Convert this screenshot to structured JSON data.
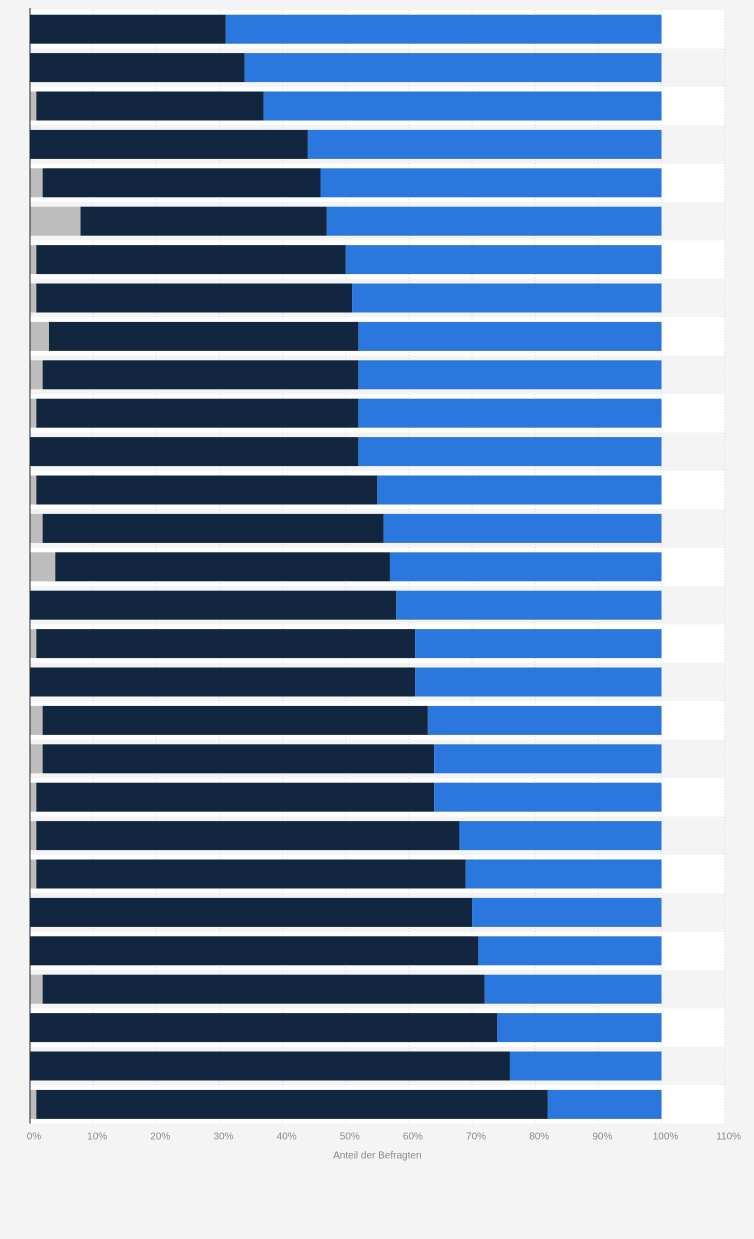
{
  "colors": {
    "segment_a": "#bdbdbd",
    "segment_b": "#12263f",
    "segment_c": "#2a77dd",
    "row_band_light": "#ffffff",
    "row_band_dark": "#f4f4f4",
    "grid": "#dddddd",
    "axis": "#222222"
  },
  "chart_data": {
    "type": "bar",
    "orientation": "horizontal",
    "stacked": true,
    "title": "",
    "xlabel": "Anteil der Befragten",
    "ylabel": "",
    "xlim": [
      0,
      110
    ],
    "x_ticks": [
      "0%",
      "10%",
      "20%",
      "30%",
      "40%",
      "50%",
      "60%",
      "70%",
      "80%",
      "90%",
      "100%",
      "110%"
    ],
    "grid": true,
    "legend": "none",
    "categories": [
      "",
      "",
      "",
      "",
      "",
      "",
      "",
      "",
      "",
      "",
      "",
      "",
      "",
      "",
      "",
      "",
      "",
      "",
      "",
      "",
      "",
      "",
      "",
      "",
      "",
      "",
      "",
      "",
      ""
    ],
    "series": [
      {
        "color": "#bdbdbd",
        "values": [
          0,
          0,
          1,
          0,
          2,
          8,
          1,
          1,
          3,
          2,
          1,
          0,
          1,
          2,
          4,
          0,
          1,
          0,
          2,
          2,
          1,
          1,
          1,
          0,
          0,
          2,
          0,
          0,
          1
        ]
      },
      {
        "color": "#12263f",
        "values": [
          31,
          34,
          36,
          44,
          44,
          39,
          49,
          50,
          49,
          50,
          51,
          52,
          54,
          54,
          53,
          58,
          60,
          61,
          61,
          62,
          63,
          67,
          68,
          70,
          71,
          70,
          74,
          76,
          81
        ]
      },
      {
        "color": "#2a77dd",
        "values": [
          69,
          66,
          63,
          56,
          54,
          53,
          50,
          49,
          48,
          48,
          48,
          48,
          45,
          44,
          43,
          42,
          39,
          39,
          37,
          36,
          36,
          32,
          31,
          30,
          29,
          28,
          26,
          24,
          18
        ]
      }
    ]
  }
}
